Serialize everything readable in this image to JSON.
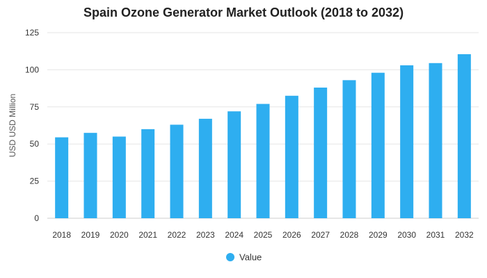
{
  "chart_data": {
    "type": "bar",
    "title": "Spain Ozone Generator Market Outlook (2018 to 2032)",
    "xlabel": "",
    "ylabel": "USD USD Million",
    "categories": [
      "2018",
      "2019",
      "2020",
      "2021",
      "2022",
      "2023",
      "2024",
      "2025",
      "2026",
      "2027",
      "2028",
      "2029",
      "2030",
      "2031",
      "2032"
    ],
    "series": [
      {
        "name": "Value",
        "color": "#2eaef0",
        "values": [
          54.5,
          57.5,
          55,
          60,
          63,
          67,
          72,
          77,
          82.5,
          88,
          93,
          98,
          103,
          104.5,
          110.5
        ]
      }
    ],
    "ylim": [
      0,
      125
    ],
    "yticks": [
      0,
      25,
      50,
      75,
      100,
      125
    ],
    "grid": true,
    "legend_position": "bottom-center"
  }
}
